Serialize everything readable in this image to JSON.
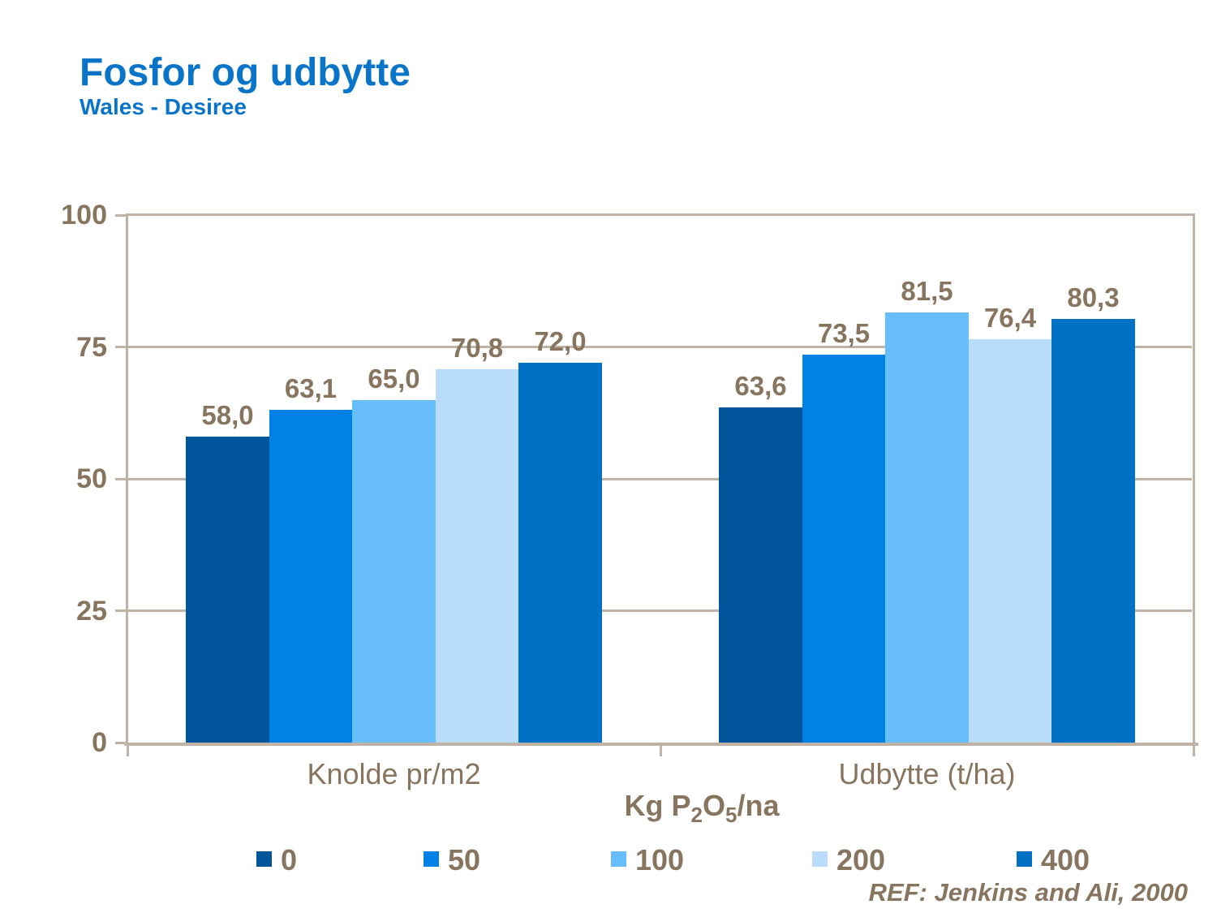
{
  "slide": {
    "title": "Fosfor og udbytte",
    "subtitle": "Wales - Desiree",
    "reference": "REF: Jenkins and Ali, 2000"
  },
  "axis_title": {
    "p1": "Kg P",
    "sub1": "2",
    "p2": "O",
    "sub2": "5",
    "p3": "/na"
  },
  "colors": {
    "title_blue": "#0A74C8",
    "text_brown": "#877560",
    "axis_line": "#BEB3A6",
    "background": "#FFFFFF"
  },
  "chart_data": {
    "type": "bar",
    "title": "Fosfor og udbytte",
    "subtitle": "Wales - Desiree",
    "categories": [
      "Knolde pr/m2",
      "Udbytte (t/ha)"
    ],
    "series": [
      {
        "name": "0",
        "color": "#00559B",
        "values": [
          58.0,
          63.6
        ],
        "value_labels": [
          "58,0",
          "63,6"
        ]
      },
      {
        "name": "50",
        "color": "#0081E6",
        "values": [
          63.1,
          73.5
        ],
        "value_labels": [
          "63,1",
          "73,5"
        ]
      },
      {
        "name": "100",
        "color": "#68BDFB",
        "values": [
          65.0,
          81.5
        ],
        "value_labels": [
          "65,0",
          "81,5"
        ]
      },
      {
        "name": "200",
        "color": "#B9DCFB",
        "values": [
          70.8,
          76.4
        ],
        "value_labels": [
          "70,8",
          "76,4"
        ]
      },
      {
        "name": "400",
        "color": "#0071C5",
        "values": [
          72.0,
          80.3
        ],
        "value_labels": [
          "72,0",
          "80,3"
        ]
      }
    ],
    "xlabel": "Kg P2O5/na",
    "ylabel": "",
    "ylim": [
      0,
      100
    ],
    "yticks": [
      0,
      25,
      50,
      75,
      100
    ],
    "grid": true,
    "legend_position": "bottom",
    "decimal_separator": ",",
    "reference": "REF: Jenkins and Ali, 2000"
  }
}
